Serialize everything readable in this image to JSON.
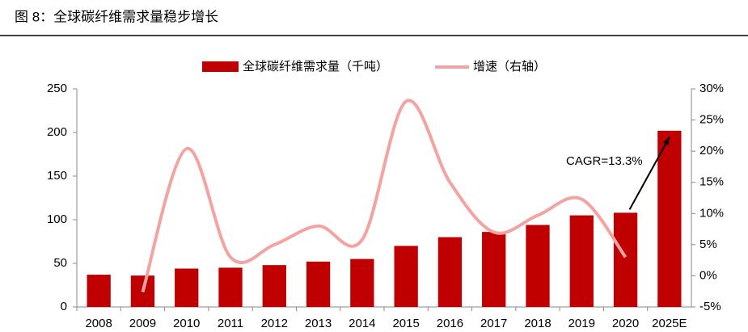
{
  "chart_data": {
    "type": "bar_line",
    "title": "图 8：全球碳纤维需求量稳步增长",
    "categories": [
      "2008",
      "2009",
      "2010",
      "2011",
      "2012",
      "2013",
      "2014",
      "2015",
      "2016",
      "2017",
      "2018",
      "2019",
      "2020",
      "2025E"
    ],
    "series": [
      {
        "name": "全球碳纤维需求量（千吨）",
        "color": "#c00000",
        "type": "bar",
        "values": [
          37,
          36,
          44,
          45,
          48,
          52,
          55,
          70,
          80,
          86,
          94,
          105,
          108,
          202
        ]
      },
      {
        "name": "增速（右轴）",
        "color": "#f4a3a3",
        "type": "line",
        "axis": "y2",
        "values": [
          null,
          -2.6,
          20.4,
          3,
          5,
          8,
          5.8,
          28,
          15,
          7,
          9.7,
          12.3,
          3,
          null
        ]
      }
    ],
    "ylim": [
      0,
      250
    ],
    "yticks": [
      0,
      50,
      100,
      150,
      200,
      250
    ],
    "y2lim": [
      -5,
      30
    ],
    "y2ticks": [
      {
        "value": -5,
        "label": "-5%"
      },
      {
        "value": 0,
        "label": "0%"
      },
      {
        "value": 5,
        "label": "5%"
      },
      {
        "value": 10,
        "label": "10%"
      },
      {
        "value": 15,
        "label": "15%"
      },
      {
        "value": 20,
        "label": "20%"
      },
      {
        "value": 25,
        "label": "25%"
      },
      {
        "value": 30,
        "label": "30%"
      }
    ],
    "annotation": "CAGR=13.3%",
    "legend": "top"
  }
}
